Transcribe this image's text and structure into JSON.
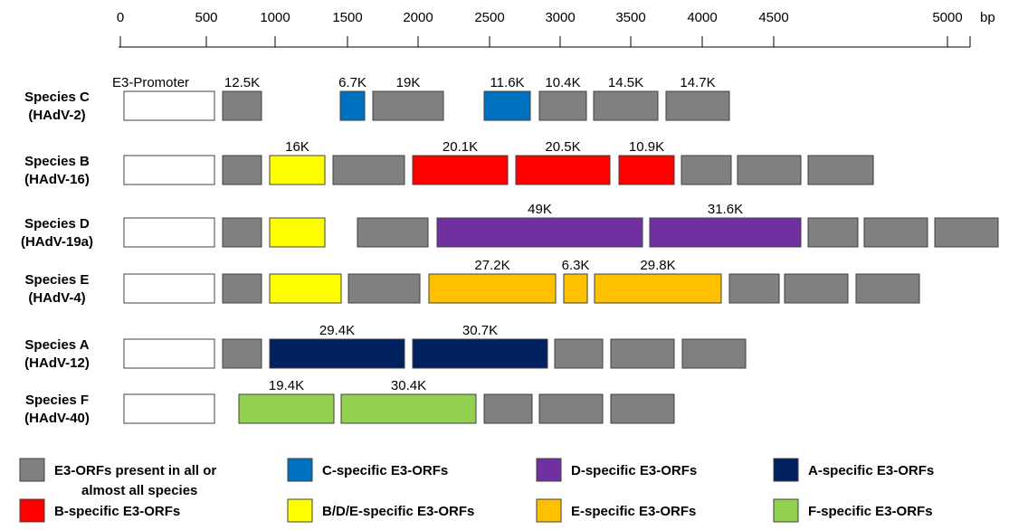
{
  "scale": {
    "ticks": [
      "0",
      "500",
      "1000",
      "1500",
      "2000",
      "2500",
      "3000",
      "3500",
      "4000",
      "4500",
      "5000"
    ],
    "unit": "bp"
  },
  "colors": {
    "common": "#808080",
    "C": "#0070C0",
    "B": "#FF0000",
    "BDE": "#FFFF00",
    "D": "#7030A0",
    "E": "#FFC000",
    "A": "#002060",
    "F": "#92D050",
    "promoter": "#FFFFFF"
  },
  "species": [
    {
      "name": "Species C",
      "strain": "(HAdV-2)",
      "boxes": [
        {
          "cat": "promoter",
          "label": "E3-Promoter"
        },
        {
          "cat": "common",
          "label": "12.5K"
        },
        {
          "cat": "C",
          "label": "6.7K"
        },
        {
          "cat": "common",
          "label": "19K"
        },
        {
          "cat": "C",
          "label": "11.6K"
        },
        {
          "cat": "common",
          "label": "10.4K"
        },
        {
          "cat": "common",
          "label": "14.5K"
        },
        {
          "cat": "common",
          "label": "14.7K"
        }
      ]
    },
    {
      "name": "Species B",
      "strain": "(HAdV-16)",
      "boxes": [
        {
          "cat": "promoter",
          "label": ""
        },
        {
          "cat": "common",
          "label": ""
        },
        {
          "cat": "BDE",
          "label": "16K"
        },
        {
          "cat": "common",
          "label": ""
        },
        {
          "cat": "B",
          "label": "20.1K"
        },
        {
          "cat": "B",
          "label": "20.5K"
        },
        {
          "cat": "B",
          "label": "10.9K"
        },
        {
          "cat": "common",
          "label": ""
        },
        {
          "cat": "common",
          "label": ""
        },
        {
          "cat": "common",
          "label": ""
        }
      ]
    },
    {
      "name": "Species D",
      "strain": "(HAdV-19a)",
      "boxes": [
        {
          "cat": "promoter",
          "label": ""
        },
        {
          "cat": "common",
          "label": ""
        },
        {
          "cat": "BDE",
          "label": ""
        },
        {
          "cat": "common",
          "label": ""
        },
        {
          "cat": "D",
          "label": "49K"
        },
        {
          "cat": "D",
          "label": "31.6K"
        },
        {
          "cat": "common",
          "label": ""
        },
        {
          "cat": "common",
          "label": ""
        },
        {
          "cat": "common",
          "label": ""
        }
      ]
    },
    {
      "name": "Species E",
      "strain": "(HAdV-4)",
      "boxes": [
        {
          "cat": "promoter",
          "label": ""
        },
        {
          "cat": "common",
          "label": ""
        },
        {
          "cat": "BDE",
          "label": ""
        },
        {
          "cat": "common",
          "label": ""
        },
        {
          "cat": "E",
          "label": "27.2K"
        },
        {
          "cat": "E",
          "label": "6.3K"
        },
        {
          "cat": "E",
          "label": "29.8K"
        },
        {
          "cat": "common",
          "label": ""
        },
        {
          "cat": "common",
          "label": ""
        },
        {
          "cat": "common",
          "label": ""
        }
      ]
    },
    {
      "name": "Species A",
      "strain": "(HAdV-12)",
      "boxes": [
        {
          "cat": "promoter",
          "label": ""
        },
        {
          "cat": "common",
          "label": ""
        },
        {
          "cat": "A",
          "label": "29.4K"
        },
        {
          "cat": "A",
          "label": "30.7K"
        },
        {
          "cat": "common",
          "label": ""
        },
        {
          "cat": "common",
          "label": ""
        },
        {
          "cat": "common",
          "label": ""
        }
      ]
    },
    {
      "name": "Species F",
      "strain": "(HAdV-40)",
      "boxes": [
        {
          "cat": "promoter",
          "label": ""
        },
        {
          "cat": "F",
          "label": "19.4K"
        },
        {
          "cat": "F",
          "label": "30.4K"
        },
        {
          "cat": "common",
          "label": ""
        },
        {
          "cat": "common",
          "label": ""
        },
        {
          "cat": "common",
          "label": ""
        }
      ]
    }
  ],
  "legend": [
    {
      "cat": "common",
      "label": "E3-ORFs present in all or",
      "label2": "almost all species"
    },
    {
      "cat": "C",
      "label": "C-specific E3-ORFs"
    },
    {
      "cat": "D",
      "label": "D-specific E3-ORFs"
    },
    {
      "cat": "A",
      "label": "A-specific E3-ORFs"
    },
    {
      "cat": "B",
      "label": "B-specific E3-ORFs"
    },
    {
      "cat": "BDE",
      "label": "B/D/E-specific E3-ORFs"
    },
    {
      "cat": "E",
      "label": "E-specific E3-ORFs"
    },
    {
      "cat": "F",
      "label": "F-specific E3-ORFs"
    }
  ]
}
